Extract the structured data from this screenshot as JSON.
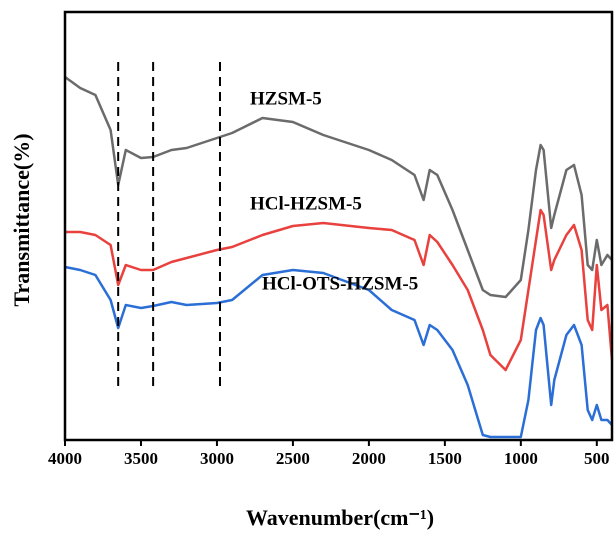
{
  "chart_data": {
    "type": "line",
    "x_label": "Wavenumber(cm⁻¹)",
    "y_label": "Transmittance(%)",
    "x": [
      4000,
      3900,
      3800,
      3700,
      3650,
      3600,
      3500,
      3420,
      3300,
      3200,
      3000,
      2900,
      2700,
      2500,
      2300,
      2000,
      1850,
      1700,
      1640,
      1600,
      1550,
      1450,
      1350,
      1250,
      1200,
      1100,
      1000,
      950,
      900,
      870,
      850,
      800,
      780,
      700,
      650,
      600,
      560,
      530,
      500,
      470,
      430,
      400
    ],
    "series": [
      {
        "name": "HZSM-5",
        "color": "#6b6b6b",
        "values": [
          363,
          352,
          345,
          310,
          255,
          290,
          282,
          283,
          290,
          292,
          302,
          307,
          322,
          318,
          305,
          290,
          280,
          265,
          240,
          270,
          265,
          230,
          190,
          150,
          145,
          143,
          160,
          210,
          270,
          295,
          290,
          212,
          225,
          270,
          275,
          245,
          175,
          170,
          200,
          175,
          185,
          180
        ]
      },
      {
        "name": "HCl-HZSM-5",
        "color": "#e8413e",
        "values": [
          208,
          208,
          205,
          195,
          155,
          175,
          170,
          170,
          178,
          182,
          190,
          193,
          205,
          214,
          217,
          212,
          210,
          200,
          175,
          205,
          198,
          175,
          150,
          110,
          85,
          70,
          100,
          150,
          200,
          230,
          225,
          170,
          180,
          205,
          215,
          190,
          120,
          110,
          175,
          130,
          135,
          80
        ]
      },
      {
        "name": "HCl-OTS-HZSM-5",
        "color": "#2a6ed6",
        "values": [
          173,
          170,
          165,
          140,
          112,
          135,
          132,
          134,
          138,
          135,
          137,
          140,
          165,
          170,
          167,
          150,
          130,
          120,
          95,
          115,
          110,
          90,
          55,
          5,
          3,
          3,
          3,
          40,
          110,
          122,
          115,
          35,
          60,
          105,
          115,
          95,
          30,
          20,
          35,
          20,
          20,
          15
        ]
      }
    ],
    "reference_lines": [
      3650,
      3420,
      2980
    ],
    "xlim": [
      4000,
      400
    ],
    "xticks": [
      4000,
      3500,
      3000,
      2500,
      2000,
      1500,
      1000,
      500
    ],
    "ylim": [
      0,
      428
    ]
  }
}
